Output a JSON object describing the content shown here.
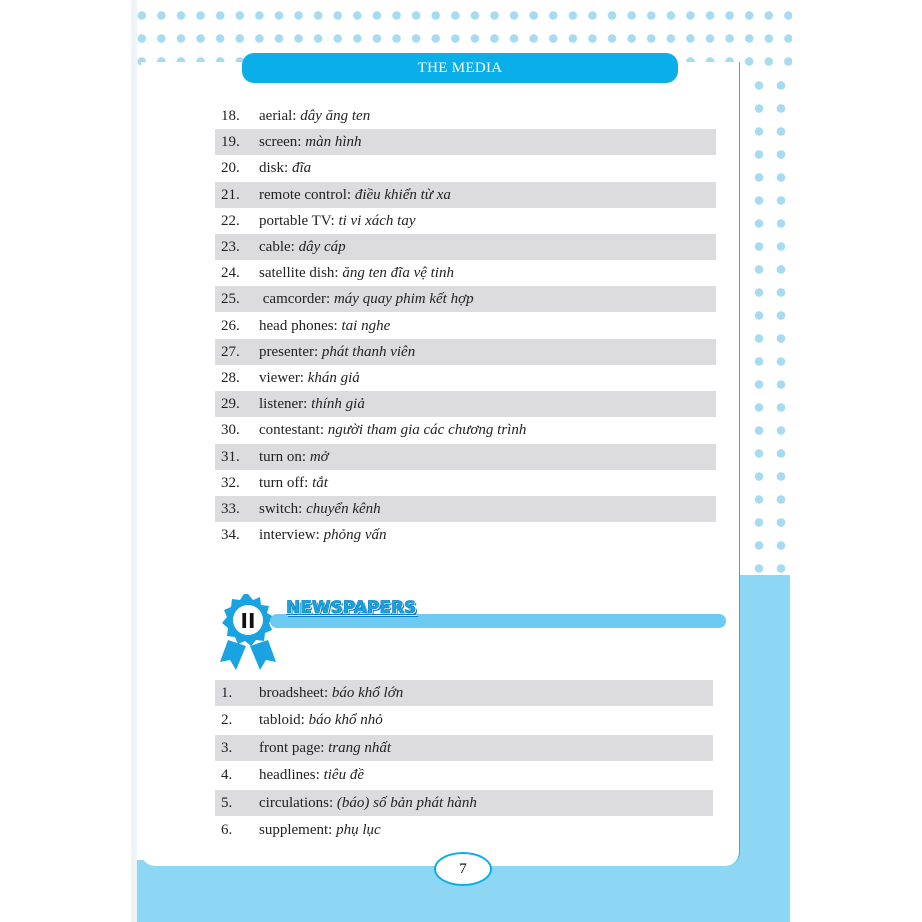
{
  "header": {
    "title": "THE MEDIA"
  },
  "list1": [
    {
      "num": "18.",
      "en": "aerial:",
      "vi": "dây ăng ten"
    },
    {
      "num": "19.",
      "en": "screen:",
      "vi": "màn hình"
    },
    {
      "num": "20.",
      "en": "disk:",
      "vi": "đĩa"
    },
    {
      "num": "21.",
      "en": "remote control:",
      "vi": "điều khiển từ xa"
    },
    {
      "num": "22.",
      "en": "portable TV:",
      "vi": "ti vi xách tay"
    },
    {
      "num": "23.",
      "en": "cable:",
      "vi": "dây cáp"
    },
    {
      "num": "24.",
      "en": "satellite dish:",
      "vi": "ăng ten đĩa vệ tinh"
    },
    {
      "num": "25.",
      "en": " camcorder:",
      "vi": "máy quay phim kết hợp"
    },
    {
      "num": "26.",
      "en": "head phones:",
      "vi": "tai nghe"
    },
    {
      "num": "27.",
      "en": "presenter:",
      "vi": "phát thanh viên"
    },
    {
      "num": "28.",
      "en": "viewer:",
      "vi": "khán giả"
    },
    {
      "num": "29.",
      "en": "listener:",
      "vi": "thính giả"
    },
    {
      "num": "30.",
      "en": "contestant:",
      "vi": "người tham gia các chương trình"
    },
    {
      "num": "31.",
      "en": "turn on:",
      "vi": "mở"
    },
    {
      "num": "32.",
      "en": "turn off:",
      "vi": "tắt"
    },
    {
      "num": "33.",
      "en": "switch:",
      "vi": "chuyển kênh"
    },
    {
      "num": "34.",
      "en": "interview:",
      "vi": "phỏng vấn"
    }
  ],
  "section": {
    "numeral": "II",
    "title": "NEWSPAPERS",
    "accent": "#0aaee8"
  },
  "list2": [
    {
      "num": "1.",
      "en": "broadsheet:",
      "vi": "báo khổ lớn"
    },
    {
      "num": "2.",
      "en": "tabloid:",
      "vi": "báo khổ nhỏ"
    },
    {
      "num": "3.",
      "en": "front page:",
      "vi": "trang nhất"
    },
    {
      "num": "4.",
      "en": "headlines:",
      "vi": "tiêu đề"
    },
    {
      "num": "5.",
      "en": "circulations:",
      "vi": "(báo) số bản phát hành"
    },
    {
      "num": "6.",
      "en": "supplement:",
      "vi": "phụ lục"
    }
  ],
  "page_number": "7"
}
